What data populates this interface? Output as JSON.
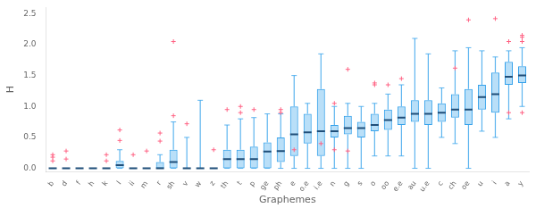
{
  "chart_data": {
    "type": "box",
    "xlabel": "Graphemes",
    "ylabel": "H",
    "categories": [
      "b",
      "d",
      "f",
      "h",
      "k",
      "l",
      "ii",
      "m",
      "r",
      "sh",
      "v",
      "w",
      "z",
      "th",
      "t",
      "p",
      "ge",
      "ph",
      "e",
      "o.e",
      "i.e",
      "n",
      "g",
      "s",
      "o",
      "oo",
      "e.e",
      "au",
      "u.e",
      "c",
      "ch",
      "oe",
      "u",
      "i",
      "a",
      "y"
    ],
    "boxes": [
      {
        "med": 0.0,
        "q1": 0.0,
        "q3": 0.0,
        "whislo": 0.0,
        "whishi": 0.0,
        "fliers": [
          0.18,
          0.12,
          0.22
        ]
      },
      {
        "med": 0.0,
        "q1": 0.0,
        "q3": 0.0,
        "whislo": 0.0,
        "whishi": 0.0,
        "fliers": [
          0.28,
          0.15
        ]
      },
      {
        "med": 0.0,
        "q1": 0.0,
        "q3": 0.0,
        "whislo": 0.0,
        "whishi": 0.0,
        "fliers": []
      },
      {
        "med": 0.0,
        "q1": 0.0,
        "q3": 0.0,
        "whislo": 0.0,
        "whishi": 0.0,
        "fliers": []
      },
      {
        "med": 0.0,
        "q1": 0.0,
        "q3": 0.0,
        "whislo": 0.0,
        "whishi": 0.0,
        "fliers": [
          0.22,
          0.12
        ]
      },
      {
        "med": 0.05,
        "q1": 0.0,
        "q3": 0.12,
        "whislo": 0.0,
        "whishi": 0.3,
        "fliers": [
          0.45,
          0.62
        ]
      },
      {
        "med": 0.0,
        "q1": 0.0,
        "q3": 0.0,
        "whislo": 0.0,
        "whishi": 0.0,
        "fliers": [
          0.22
        ]
      },
      {
        "med": 0.0,
        "q1": 0.0,
        "q3": 0.0,
        "whislo": 0.0,
        "whishi": 0.0,
        "fliers": [
          0.28
        ]
      },
      {
        "med": 0.0,
        "q1": 0.0,
        "q3": 0.1,
        "whislo": 0.0,
        "whishi": 0.22,
        "fliers": [
          0.44,
          0.57
        ]
      },
      {
        "med": 0.1,
        "q1": 0.0,
        "q3": 0.3,
        "whislo": 0.0,
        "whishi": 0.75,
        "fliers": [
          2.05,
          0.85
        ]
      },
      {
        "med": 0.0,
        "q1": 0.0,
        "q3": 0.0,
        "whislo": 0.0,
        "whishi": 0.5,
        "fliers": [
          0.72
        ]
      },
      {
        "med": 0.0,
        "q1": 0.0,
        "q3": 0.0,
        "whislo": 0.0,
        "whishi": 1.1,
        "fliers": []
      },
      {
        "med": 0.0,
        "q1": 0.0,
        "q3": 0.0,
        "whislo": 0.0,
        "whishi": 0.0,
        "fliers": [
          0.3
        ]
      },
      {
        "med": 0.15,
        "q1": 0.0,
        "q3": 0.3,
        "whislo": 0.0,
        "whishi": 0.7,
        "fliers": [
          0.95
        ]
      },
      {
        "med": 0.15,
        "q1": 0.0,
        "q3": 0.3,
        "whislo": 0.0,
        "whishi": 0.8,
        "fliers": [
          0.9,
          1.0
        ]
      },
      {
        "med": 0.15,
        "q1": 0.0,
        "q3": 0.35,
        "whislo": 0.0,
        "whishi": 0.82,
        "fliers": [
          0.95
        ]
      },
      {
        "med": 0.27,
        "q1": 0.0,
        "q3": 0.42,
        "whislo": 0.0,
        "whishi": 0.88,
        "fliers": []
      },
      {
        "med": 0.28,
        "q1": 0.1,
        "q3": 0.5,
        "whislo": 0.0,
        "whishi": 0.88,
        "fliers": [
          0.95,
          0.9
        ]
      },
      {
        "med": 0.55,
        "q1": 0.2,
        "q3": 1.0,
        "whislo": 0.0,
        "whishi": 1.5,
        "fliers": [
          0.3
        ]
      },
      {
        "med": 0.58,
        "q1": 0.4,
        "q3": 0.88,
        "whislo": 0.0,
        "whishi": 1.05,
        "fliers": []
      },
      {
        "med": 0.6,
        "q1": 0.2,
        "q3": 1.28,
        "whislo": 0.0,
        "whishi": 1.85,
        "fliers": [
          0.4
        ]
      },
      {
        "med": 0.6,
        "q1": 0.5,
        "q3": 0.7,
        "whislo": 0.0,
        "whishi": 1.0,
        "fliers": [
          0.3,
          1.05
        ]
      },
      {
        "med": 0.65,
        "q1": 0.55,
        "q3": 0.85,
        "whislo": 0.0,
        "whishi": 1.05,
        "fliers": [
          1.6,
          0.28
        ]
      },
      {
        "med": 0.65,
        "q1": 0.5,
        "q3": 0.75,
        "whislo": 0.0,
        "whishi": 1.0,
        "fliers": []
      },
      {
        "med": 0.7,
        "q1": 0.6,
        "q3": 0.88,
        "whislo": 0.2,
        "whishi": 1.05,
        "fliers": [
          1.35,
          1.38
        ]
      },
      {
        "med": 0.78,
        "q1": 0.62,
        "q3": 0.95,
        "whislo": 0.2,
        "whishi": 1.2,
        "fliers": [
          1.35
        ]
      },
      {
        "med": 0.82,
        "q1": 0.7,
        "q3": 1.0,
        "whislo": 0.2,
        "whishi": 1.35,
        "fliers": [
          1.45
        ]
      },
      {
        "med": 0.88,
        "q1": 0.75,
        "q3": 1.1,
        "whislo": 0.0,
        "whishi": 2.1,
        "fliers": []
      },
      {
        "med": 0.88,
        "q1": 0.7,
        "q3": 1.1,
        "whislo": 0.0,
        "whishi": 1.85,
        "fliers": []
      },
      {
        "med": 0.9,
        "q1": 0.75,
        "q3": 1.05,
        "whislo": 0.5,
        "whishi": 1.3,
        "fliers": []
      },
      {
        "med": 0.95,
        "q1": 0.82,
        "q3": 1.2,
        "whislo": 0.4,
        "whishi": 1.9,
        "fliers": [
          1.62
        ]
      },
      {
        "med": 0.95,
        "q1": 0.7,
        "q3": 1.28,
        "whislo": 0.0,
        "whishi": 1.95,
        "fliers": [
          2.4
        ]
      },
      {
        "med": 1.15,
        "q1": 0.95,
        "q3": 1.35,
        "whislo": 0.6,
        "whishi": 1.9,
        "fliers": []
      },
      {
        "med": 1.2,
        "q1": 0.9,
        "q3": 1.55,
        "whislo": 0.5,
        "whishi": 1.8,
        "fliers": [
          2.42
        ]
      },
      {
        "med": 1.48,
        "q1": 1.35,
        "q3": 1.72,
        "whislo": 0.8,
        "whishi": 1.9,
        "fliers": [
          2.05,
          0.9
        ]
      },
      {
        "med": 1.5,
        "q1": 1.38,
        "q3": 1.65,
        "whislo": 1.0,
        "whishi": 1.95,
        "fliers": [
          2.05,
          2.12,
          2.15,
          0.9
        ]
      }
    ],
    "ylim": [
      -0.05,
      2.6
    ],
    "yticks": [
      {
        "value": 0.0,
        "label": "0.0"
      },
      {
        "value": 0.5,
        "label": "0.5"
      },
      {
        "value": 1.0,
        "label": "1.0"
      },
      {
        "value": 1.5,
        "label": "1.5"
      },
      {
        "value": 2.0,
        "label": "2.0"
      },
      {
        "value": 2.5,
        "label": "2.5"
      }
    ],
    "grid": false
  }
}
